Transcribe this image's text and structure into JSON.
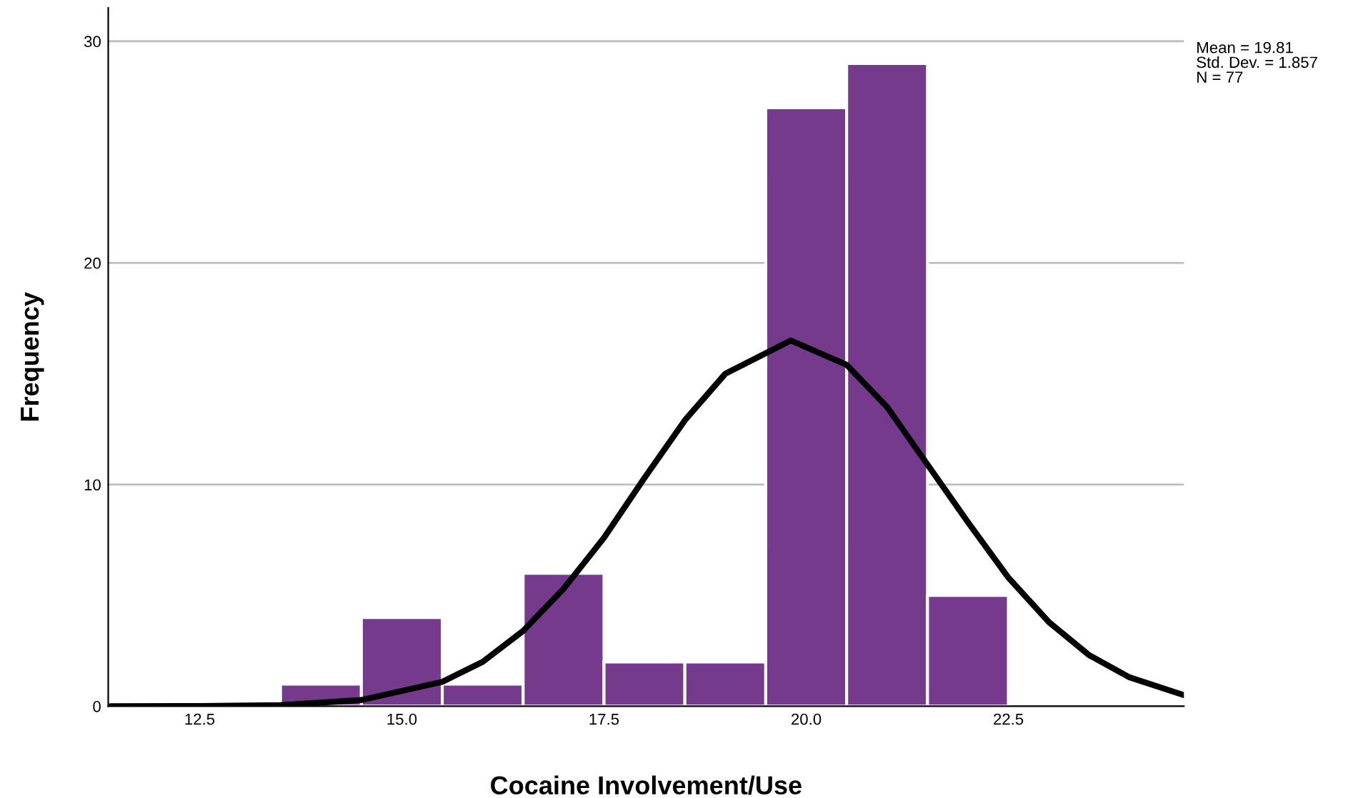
{
  "chart_data": {
    "type": "histogram",
    "xlabel": "Cocaine Involvement/Use",
    "ylabel": "Frequency",
    "bins": [
      13.5,
      14.5,
      15.5,
      16.5,
      17.5,
      18.5,
      19.5,
      20.5,
      21.5,
      22.5
    ],
    "series": [
      {
        "color": "#753a8c",
        "values": [
          1,
          4,
          1,
          6,
          2,
          2,
          27,
          29,
          5
        ]
      },
      {
        "type": "line",
        "color": "#000000",
        "x": [
          11.4,
          12.5,
          13.5,
          14.5,
          15.5,
          16,
          16.5,
          17,
          17.5,
          18,
          18.5,
          19,
          19.81,
          20.5,
          21,
          21.5,
          22,
          22.5,
          23,
          23.5,
          24,
          24.67
        ],
        "values": [
          0,
          0.01,
          0.05,
          0.28,
          1.1,
          2,
          3.4,
          5.3,
          7.6,
          10.3,
          12.9,
          15,
          16.5,
          15.4,
          13.5,
          10.9,
          8.3,
          5.8,
          3.8,
          2.3,
          1.3,
          0.5
        ]
      }
    ],
    "xlim": [
      11.37,
      24.67
    ],
    "ylim": [
      0,
      31.5
    ],
    "xticks": [
      12.5,
      {
        "value": 15,
        "label": "15.0"
      },
      17.5,
      {
        "value": 20,
        "label": "20.0"
      },
      22.5
    ],
    "yticks": [
      0,
      10,
      20,
      30
    ],
    "grid": "y",
    "marker": "none",
    "line_style": "solid",
    "annotations": [
      "Mean = 19.81\nStd. Dev. = 1.857\nN = 77"
    ]
  }
}
